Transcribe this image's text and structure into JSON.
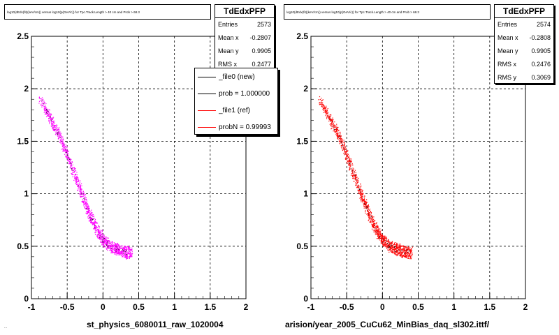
{
  "plot_title": "log10(dEdx(fit)(keV/cm)) versus log10(p(GeV/c)) for Tpc.Track.Length > 40 cm and Prob > 68.3",
  "stats_labels": {
    "entries": "Entries",
    "mean_x": "Mean x",
    "mean_y": "Mean y",
    "rms_x": "RMS x",
    "rms_y": "RMS y"
  },
  "panels": [
    {
      "stats": {
        "title": "TdEdxPFP",
        "entries": "2573",
        "mean_x": "-0.2807",
        "mean_y": "0.9905",
        "rms_x": "0.2477"
      },
      "legend": [
        {
          "label": "_file0 (new)",
          "color": "#000000"
        },
        {
          "label": "prob = 1.000000",
          "color": "#000000"
        },
        {
          "label": "_file1 (ref)",
          "color": "#ff0000"
        },
        {
          "label": "probN = 0.99993",
          "color": "#ff0000"
        }
      ],
      "footer": "st_physics_6080011_raw_1020004",
      "point_color": "#ff00ff"
    },
    {
      "stats": {
        "title": "TdEdxPFP",
        "entries": "2574",
        "mean_x": "-0.2808",
        "mean_y": "0.9905",
        "rms_x": "0.2476",
        "rms_y": "0.3069"
      },
      "footer": "arision/year_2005_CuCu62_MinBias_daq_sl302.ittf/",
      "point_color": "#ff0000"
    }
  ],
  "corner_note": "...",
  "chart_data": [
    {
      "type": "scatter",
      "title": "log10(dEdx(fit)(keV/cm)) versus log10(p(GeV/c)) for Tpc.Track.Length > 40 cm and Prob > 68.3",
      "xlim": [
        -1,
        2
      ],
      "ylim": [
        0,
        2.5
      ],
      "xticks": [
        "-1",
        "-0.5",
        "0",
        "0.5",
        "1",
        "1.5",
        "2"
      ],
      "yticks": [
        "0",
        "0.5",
        "1",
        "1.5",
        "2",
        "2.5"
      ],
      "grid": true,
      "series": [
        {
          "name": "_file0 (new)",
          "color": "#ff00ff",
          "band": [
            [
              -0.88,
              1.9
            ],
            [
              -0.7,
              1.67
            ],
            [
              -0.6,
              1.54
            ],
            [
              -0.5,
              1.36
            ],
            [
              -0.4,
              1.18
            ],
            [
              -0.3,
              1.0
            ],
            [
              -0.2,
              0.82
            ],
            [
              -0.1,
              0.67
            ],
            [
              0.0,
              0.56
            ],
            [
              0.1,
              0.5
            ],
            [
              0.2,
              0.47
            ],
            [
              0.3,
              0.45
            ],
            [
              0.4,
              0.44
            ]
          ]
        }
      ]
    },
    {
      "type": "scatter",
      "title": "log10(dEdx(fit)(keV/cm)) versus log10(p(GeV/c)) for Tpc.Track.Length > 40 cm and Prob > 68.3",
      "xlim": [
        -1,
        2
      ],
      "ylim": [
        0,
        2.5
      ],
      "xticks": [
        "-1",
        "-0.5",
        "0",
        "0.5",
        "1",
        "1.5",
        "2"
      ],
      "yticks": [
        "0",
        "0.5",
        "1",
        "1.5",
        "2",
        "2.5"
      ],
      "grid": true,
      "series": [
        {
          "name": "_file1 (ref)",
          "color": "#ff0000",
          "band": [
            [
              -0.88,
              1.9
            ],
            [
              -0.7,
              1.67
            ],
            [
              -0.6,
              1.54
            ],
            [
              -0.5,
              1.36
            ],
            [
              -0.4,
              1.18
            ],
            [
              -0.3,
              1.0
            ],
            [
              -0.2,
              0.82
            ],
            [
              -0.1,
              0.67
            ],
            [
              0.0,
              0.56
            ],
            [
              0.1,
              0.5
            ],
            [
              0.2,
              0.47
            ],
            [
              0.3,
              0.45
            ],
            [
              0.4,
              0.44
            ]
          ]
        }
      ]
    }
  ]
}
